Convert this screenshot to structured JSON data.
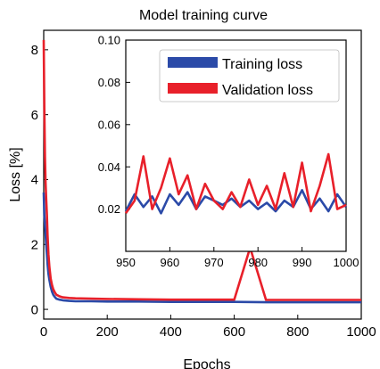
{
  "chart_data": [
    {
      "type": "line",
      "title": "Model training curve",
      "xlabel": "Epochs",
      "ylabel": "Loss [%]",
      "xlim": [
        0,
        1000
      ],
      "ylim": [
        -0.3,
        8.6
      ],
      "xticks": [
        0,
        200,
        400,
        600,
        800,
        1000
      ],
      "yticks": [
        0,
        2,
        4,
        6,
        8
      ],
      "grid": false,
      "series": [
        {
          "name": "Training loss",
          "color": "#2b4aa8",
          "x": [
            0,
            2,
            4,
            6,
            8,
            10,
            12,
            15,
            18,
            22,
            26,
            30,
            35,
            40,
            50,
            60,
            80,
            100,
            150,
            200,
            300,
            400,
            500,
            600,
            700,
            800,
            900,
            1000
          ],
          "values": [
            3.6,
            2.9,
            2.6,
            2.3,
            2.0,
            1.7,
            1.4,
            1.1,
            0.9,
            0.7,
            0.55,
            0.45,
            0.38,
            0.33,
            0.3,
            0.28,
            0.26,
            0.25,
            0.25,
            0.24,
            0.24,
            0.23,
            0.23,
            0.23,
            0.22,
            0.22,
            0.22,
            0.22
          ]
        },
        {
          "name": "Validation loss",
          "color": "#e8202a",
          "x": [
            0,
            2,
            4,
            6,
            8,
            10,
            12,
            15,
            18,
            22,
            26,
            30,
            35,
            40,
            50,
            60,
            80,
            100,
            150,
            200,
            300,
            400,
            500,
            600,
            650,
            700,
            800,
            900,
            1000
          ],
          "values": [
            8.3,
            6.2,
            4.7,
            3.9,
            3.4,
            2.9,
            2.3,
            1.7,
            1.3,
            0.95,
            0.75,
            0.62,
            0.52,
            0.45,
            0.4,
            0.37,
            0.35,
            0.34,
            0.33,
            0.32,
            0.31,
            0.3,
            0.3,
            0.3,
            1.9,
            0.29,
            0.29,
            0.29,
            0.29
          ]
        }
      ]
    },
    {
      "type": "line",
      "title": "",
      "xlim": [
        950,
        1000
      ],
      "ylim": [
        0.0,
        0.1
      ],
      "xticks": [
        950,
        960,
        970,
        980,
        990,
        1000
      ],
      "yticks": [
        0.02,
        0.04,
        0.06,
        0.08,
        0.1
      ],
      "ytick_labels": [
        "0.02",
        "0.04",
        "0.06",
        "0.08",
        "0.10"
      ],
      "legend": "top-right",
      "series": [
        {
          "name": "Training loss",
          "color": "#2b4aa8",
          "x": [
            950,
            952,
            954,
            956,
            958,
            960,
            962,
            964,
            966,
            968,
            970,
            972,
            974,
            976,
            978,
            980,
            982,
            984,
            986,
            988,
            990,
            992,
            994,
            996,
            998,
            1000
          ],
          "values": [
            0.019,
            0.027,
            0.021,
            0.026,
            0.018,
            0.027,
            0.022,
            0.028,
            0.02,
            0.026,
            0.024,
            0.022,
            0.025,
            0.021,
            0.024,
            0.02,
            0.023,
            0.019,
            0.024,
            0.021,
            0.029,
            0.02,
            0.025,
            0.019,
            0.027,
            0.021
          ]
        },
        {
          "name": "Validation loss",
          "color": "#e8202a",
          "x": [
            950,
            952,
            954,
            956,
            958,
            960,
            962,
            964,
            966,
            968,
            970,
            972,
            974,
            976,
            978,
            980,
            982,
            984,
            986,
            988,
            990,
            992,
            994,
            996,
            998,
            1000
          ],
          "values": [
            0.018,
            0.024,
            0.045,
            0.02,
            0.03,
            0.044,
            0.027,
            0.036,
            0.02,
            0.032,
            0.024,
            0.02,
            0.028,
            0.021,
            0.034,
            0.022,
            0.031,
            0.02,
            0.037,
            0.021,
            0.042,
            0.019,
            0.031,
            0.046,
            0.02,
            0.022
          ]
        }
      ]
    }
  ]
}
